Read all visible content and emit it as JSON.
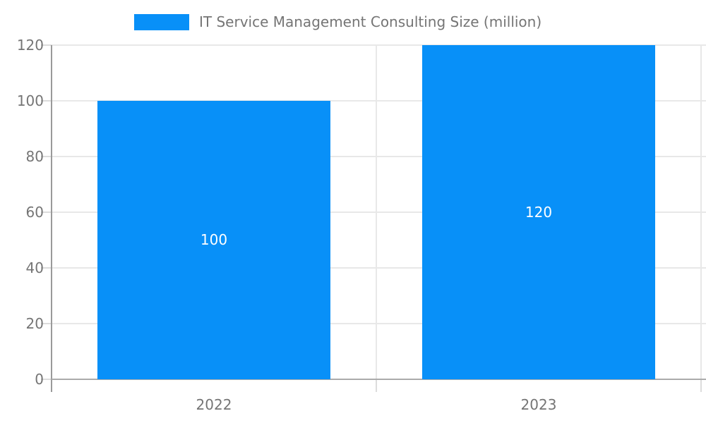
{
  "legend": {
    "label": "IT Service Management Consulting Size (million)"
  },
  "colors": {
    "bar": "#0890f8",
    "grid": "#e8e8e8",
    "axis_y": "#9a9a9a",
    "axis_x": "#ababab",
    "tick": "#dcdcdc",
    "text": "#757575",
    "bar_label": "#ffffff",
    "background": "#ffffff"
  },
  "chart_data": {
    "type": "bar",
    "categories": [
      "2022",
      "2023"
    ],
    "series": [
      {
        "name": "IT Service Management Consulting Size (million)",
        "values": [
          100,
          120
        ]
      }
    ],
    "data_labels": [
      "100",
      "120"
    ],
    "title": "",
    "xlabel": "",
    "ylabel": "",
    "ylim": [
      0,
      120
    ],
    "yticks": [
      0,
      20,
      40,
      60,
      80,
      100,
      120
    ],
    "grid": true,
    "legend_position": "top-center"
  }
}
